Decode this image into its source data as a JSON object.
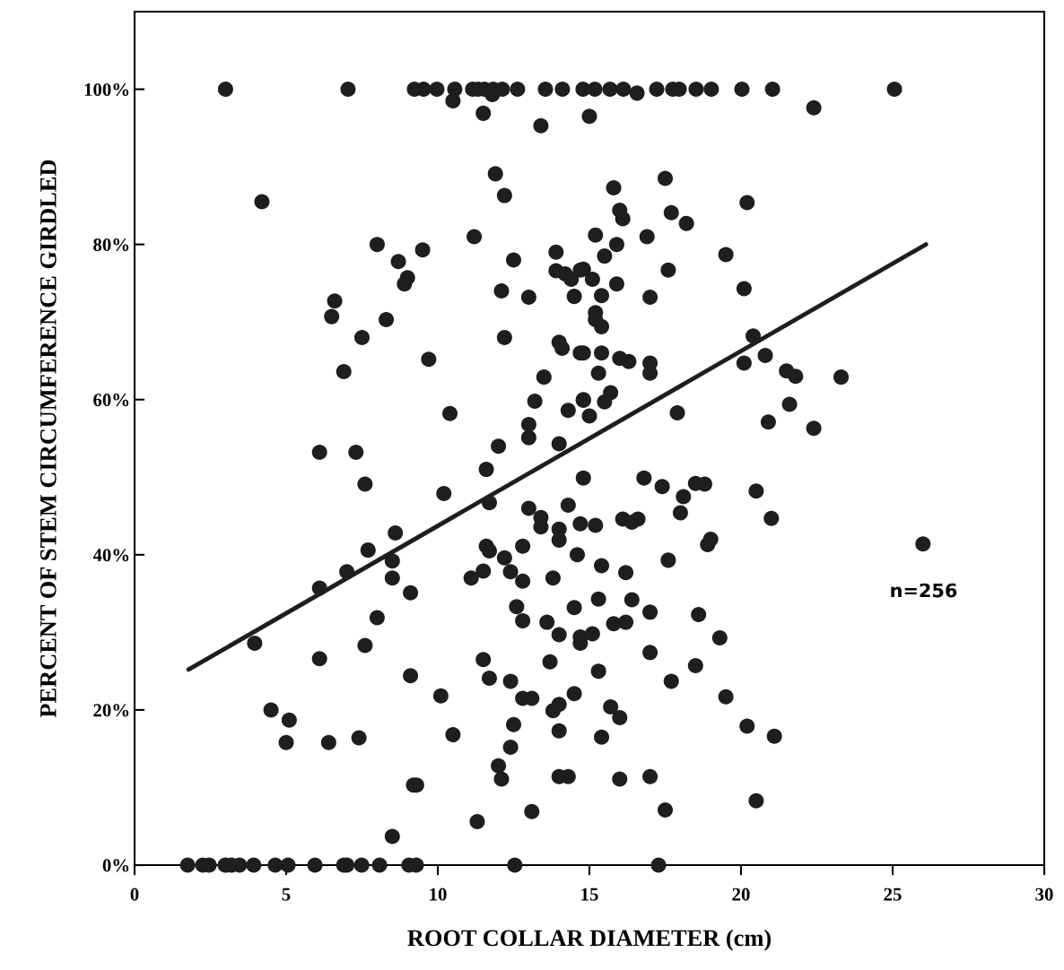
{
  "chart_data": {
    "type": "scatter",
    "xlabel": "ROOT COLLAR DIAMETER (cm)",
    "ylabel": "PERCENT OF STEM CIRCUMFERENCE GIRDLED",
    "annotations": [
      "n=256"
    ],
    "xlim": [
      0,
      30
    ],
    "xticks": [
      0,
      5,
      10,
      15,
      20,
      25,
      30
    ],
    "ylim": [
      0,
      110
    ],
    "yticks": [
      {
        "value": 0,
        "label": "0%"
      },
      {
        "value": 20,
        "label": "20%"
      },
      {
        "value": 40,
        "label": "40%"
      },
      {
        "value": 60,
        "label": "60%"
      },
      {
        "value": 80,
        "label": "80%"
      },
      {
        "value": 100,
        "label": "100%"
      }
    ],
    "grid": false,
    "legend": false,
    "series": [
      {
        "color": "#1e1e1e",
        "marker": "circle",
        "x": [
          1.75,
          2.25,
          2.46,
          2.99,
          3.2,
          3.46,
          3.93,
          4.64,
          5.06,
          5.95,
          6.9,
          7.0,
          7.49,
          8.08,
          9.05,
          9.29,
          12.54,
          17.28,
          3.0,
          7.04,
          9.23,
          9.53,
          9.97,
          10.56,
          11.15,
          11.33,
          11.54,
          11.83,
          12.13,
          12.63,
          13.55,
          14.11,
          14.79,
          15.18,
          15.68,
          16.12,
          16.57,
          17.22,
          17.75,
          17.96,
          18.52,
          19.02,
          20.03,
          21.04,
          25.06,
          10.5,
          11.5,
          11.8,
          13.4,
          15.0,
          22.4,
          4.2,
          11.9,
          12.2,
          11.2,
          8.0,
          9.5,
          8.7,
          9.0,
          8.9,
          6.6,
          6.5,
          8.3,
          7.5,
          6.9,
          9.7,
          10.4,
          12.5,
          13.9,
          13.9,
          14.2,
          14.4,
          14.7,
          12.1,
          13.0,
          14.5,
          12.2,
          14.0,
          14.1,
          14.7,
          13.5,
          13.2,
          14.3,
          14.8,
          13.0,
          13.0,
          12.0,
          14.0,
          17.5,
          15.8,
          16.0,
          16.1,
          17.7,
          18.2,
          20.2,
          15.2,
          16.9,
          15.9,
          15.5,
          19.5,
          17.6,
          14.8,
          15.1,
          15.9,
          15.4,
          17.0,
          20.1,
          15.2,
          15.2,
          15.4,
          20.4,
          14.8,
          15.4,
          16.0,
          16.3,
          17.0,
          17.0,
          20.1,
          20.8,
          21.5,
          21.8,
          23.3,
          15.3,
          15.7,
          15.5,
          14.8,
          15.0,
          17.9,
          21.6,
          20.9,
          22.4,
          6.1,
          7.3,
          7.6,
          10.2,
          11.6,
          11.7,
          8.6,
          7.7,
          8.5,
          8.5,
          7.0,
          6.1,
          9.1,
          8.0,
          3.96,
          7.6,
          6.1,
          9.1,
          10.1,
          4.5,
          5.1,
          5.0,
          6.4,
          7.4,
          10.5,
          9.2,
          9.3,
          8.5,
          11.3,
          13.1,
          11.5,
          11.7,
          12.4,
          12.8,
          13.1,
          13.8,
          14.0,
          12.5,
          12.4,
          12.0,
          12.1,
          14.0,
          14.3,
          14.0,
          14.5,
          13.7,
          11.1,
          11.5,
          12.4,
          12.8,
          12.6,
          12.8,
          13.6,
          14.0,
          14.7,
          14.7,
          15.1,
          14.5,
          13.8,
          14.6,
          12.8,
          12.2,
          11.6,
          11.7,
          13.0,
          13.4,
          13.4,
          14.0,
          14.0,
          14.3,
          14.7,
          15.2,
          14.8,
          15.4,
          15.3,
          15.3,
          15.4,
          16.8,
          17.4,
          18.1,
          18.5,
          18.8,
          20.5,
          18.0,
          16.1,
          16.4,
          16.6,
          21.0,
          19.0,
          18.9,
          26.0,
          17.6,
          16.2,
          16.4,
          17.0,
          18.6,
          15.8,
          16.2,
          19.3,
          17.0,
          18.5,
          17.7,
          19.5,
          15.7,
          16.0,
          20.2,
          21.1,
          16.0,
          17.0,
          20.5,
          17.5
        ],
        "values": [
          0,
          0,
          0,
          0,
          0,
          0,
          0,
          0,
          0,
          0,
          0,
          0,
          0,
          0,
          0,
          0,
          0,
          0,
          100,
          100,
          100,
          100,
          100,
          100,
          100,
          100,
          100,
          100,
          100,
          100,
          100,
          100,
          100,
          100,
          100,
          100,
          99.5,
          100,
          100,
          100,
          100,
          100,
          100,
          100,
          100,
          98.5,
          96.9,
          99.3,
          95.3,
          96.5,
          97.6,
          85.5,
          89.1,
          86.3,
          81.0,
          80.0,
          79.3,
          77.8,
          75.7,
          74.9,
          72.7,
          70.7,
          70.3,
          68.0,
          63.6,
          65.2,
          58.2,
          78.0,
          79.0,
          76.6,
          76.2,
          75.5,
          76.7,
          74.0,
          73.2,
          73.3,
          68.0,
          67.4,
          66.6,
          66.0,
          62.9,
          59.8,
          58.6,
          60.0,
          56.8,
          55.1,
          54.0,
          54.3,
          88.5,
          87.3,
          84.4,
          83.3,
          84.1,
          82.7,
          85.4,
          81.2,
          81.0,
          80.0,
          78.5,
          78.7,
          76.7,
          76.8,
          75.5,
          74.9,
          73.4,
          73.2,
          74.3,
          71.2,
          70.3,
          69.4,
          68.2,
          66.0,
          66.0,
          65.3,
          64.9,
          64.7,
          63.4,
          64.7,
          65.7,
          63.7,
          63.0,
          62.9,
          63.4,
          60.9,
          59.7,
          59.9,
          57.9,
          58.3,
          59.4,
          57.1,
          56.3,
          53.2,
          53.2,
          49.1,
          47.9,
          51.0,
          46.7,
          42.8,
          40.6,
          39.2,
          37.0,
          37.8,
          35.7,
          35.1,
          31.9,
          28.6,
          28.3,
          26.6,
          24.4,
          21.8,
          20.0,
          18.7,
          15.8,
          15.8,
          16.4,
          16.8,
          10.3,
          10.3,
          3.7,
          5.6,
          6.9,
          26.5,
          24.1,
          23.7,
          21.5,
          21.5,
          19.9,
          20.7,
          18.1,
          15.2,
          12.8,
          11.1,
          17.3,
          11.4,
          11.4,
          22.1,
          26.2,
          37.0,
          37.9,
          37.8,
          36.6,
          33.3,
          31.5,
          31.3,
          29.7,
          29.4,
          28.6,
          29.8,
          33.2,
          37.0,
          40.0,
          41.1,
          39.6,
          41.1,
          40.5,
          46.0,
          44.8,
          43.6,
          43.3,
          41.9,
          46.4,
          44.0,
          43.8,
          49.9,
          38.6,
          34.3,
          25.0,
          16.5,
          49.9,
          48.8,
          47.5,
          49.2,
          49.1,
          48.2,
          45.4,
          44.6,
          44.2,
          44.6,
          44.7,
          42.0,
          41.3,
          41.4,
          39.3,
          37.7,
          34.2,
          32.6,
          32.3,
          31.1,
          31.3,
          29.3,
          27.4,
          25.7,
          23.7,
          21.7,
          20.4,
          19.0,
          17.9,
          16.6,
          11.1,
          11.4,
          8.3,
          7.1
        ]
      },
      {
        "type": "line",
        "color": "#1e1e1e",
        "marker": "none",
        "line_style": "solid",
        "x": [
          1.78,
          26.1
        ],
        "values": [
          25.2,
          80.0
        ]
      }
    ]
  }
}
